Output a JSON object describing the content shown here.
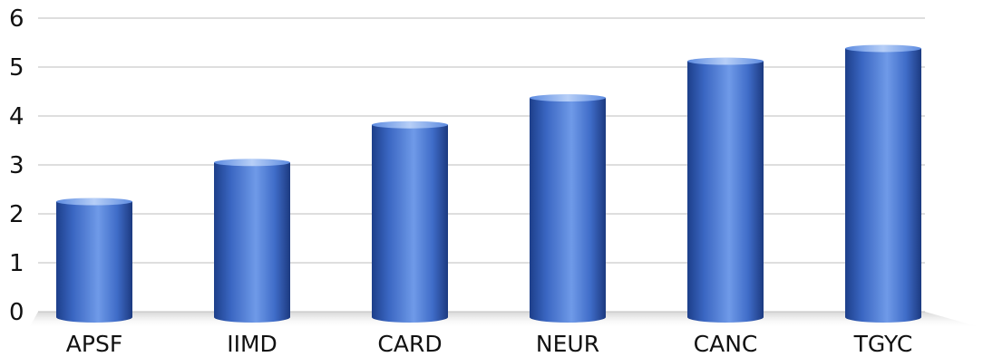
{
  "chart_data": {
    "type": "bar",
    "style": "3d-cylinder",
    "categories": [
      "APSF",
      "IIMD",
      "CARD",
      "NEUR",
      "CANC",
      "TGYC"
    ],
    "values": [
      2.25,
      3.05,
      3.82,
      4.37,
      5.12,
      5.38
    ],
    "yticks": [
      "0",
      "1",
      "2",
      "3",
      "4",
      "5",
      "6"
    ],
    "ylim": [
      0,
      6
    ],
    "grid": true,
    "bar_color": "#4a78d0",
    "title": "",
    "xlabel": "",
    "ylabel": ""
  }
}
